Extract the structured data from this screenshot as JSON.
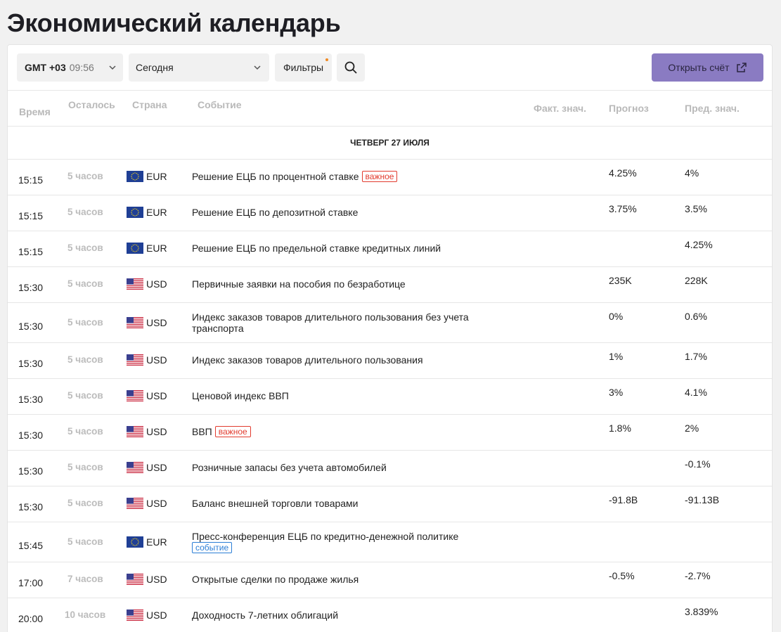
{
  "page": {
    "title": "Экономический календарь"
  },
  "toolbar": {
    "timezone_label": "GMT +03",
    "timezone_time": "09:56",
    "date_value": "Сегодня",
    "filters_label": "Фильтры",
    "open_account_label": "Открыть счёт"
  },
  "columns": {
    "time": "Время",
    "left": "Осталось",
    "country": "Страна",
    "event": "Событие",
    "fact": "Факт. знач.",
    "forecast": "Прогноз",
    "prev": "Пред. знач."
  },
  "day_header": "ЧЕТВЕРГ 27 ИЮЛЯ",
  "badges": {
    "important": "важное",
    "event": "событие"
  },
  "rows": [
    {
      "time": "15:15",
      "left": "5 часов",
      "country": "EUR",
      "flag": "eu-flag-icon",
      "event": "Решение ЕЦБ по процентной ставке",
      "badge": "important",
      "forecast": "4.25%",
      "prev": "4%"
    },
    {
      "time": "15:15",
      "left": "5 часов",
      "country": "EUR",
      "flag": "eu-flag-icon",
      "event": "Решение ЕЦБ по депозитной ставке",
      "badge": "",
      "forecast": "3.75%",
      "prev": "3.5%"
    },
    {
      "time": "15:15",
      "left": "5 часов",
      "country": "EUR",
      "flag": "eu-flag-icon",
      "event": "Решение ЕЦБ по предельной ставке кредитных линий",
      "badge": "",
      "forecast": "",
      "prev": "4.25%"
    },
    {
      "time": "15:30",
      "left": "5 часов",
      "country": "USD",
      "flag": "us-flag-icon",
      "event": "Первичные заявки на пособия по безработице",
      "badge": "",
      "forecast": "235K",
      "prev": "228K"
    },
    {
      "time": "15:30",
      "left": "5 часов",
      "country": "USD",
      "flag": "us-flag-icon",
      "event": "Индекс заказов товаров длительного пользования без учета транспорта",
      "badge": "",
      "forecast": "0%",
      "prev": "0.6%"
    },
    {
      "time": "15:30",
      "left": "5 часов",
      "country": "USD",
      "flag": "us-flag-icon",
      "event": "Индекс заказов товаров длительного пользования",
      "badge": "",
      "forecast": "1%",
      "prev": "1.7%"
    },
    {
      "time": "15:30",
      "left": "5 часов",
      "country": "USD",
      "flag": "us-flag-icon",
      "event": "Ценовой индекс ВВП",
      "badge": "",
      "forecast": "3%",
      "prev": "4.1%"
    },
    {
      "time": "15:30",
      "left": "5 часов",
      "country": "USD",
      "flag": "us-flag-icon",
      "event": "ВВП",
      "badge": "important",
      "forecast": "1.8%",
      "prev": "2%"
    },
    {
      "time": "15:30",
      "left": "5 часов",
      "country": "USD",
      "flag": "us-flag-icon",
      "event": "Розничные запасы без учета автомобилей",
      "badge": "",
      "forecast": "",
      "prev": "-0.1%"
    },
    {
      "time": "15:30",
      "left": "5 часов",
      "country": "USD",
      "flag": "us-flag-icon",
      "event": "Баланс внешней торговли товарами",
      "badge": "",
      "forecast": "-91.8B",
      "prev": "-91.13B"
    },
    {
      "time": "15:45",
      "left": "5 часов",
      "country": "EUR",
      "flag": "eu-flag-icon",
      "event": "Пресс-конференция ЕЦБ по кредитно-денежной политике",
      "badge": "event",
      "forecast": "",
      "prev": ""
    },
    {
      "time": "17:00",
      "left": "7 часов",
      "country": "USD",
      "flag": "us-flag-icon",
      "event": "Открытые сделки по продаже жилья",
      "badge": "",
      "forecast": "-0.5%",
      "prev": "-2.7%"
    },
    {
      "time": "20:00",
      "left": "10 часов",
      "country": "USD",
      "flag": "us-flag-icon",
      "event": "Доходность 7-летних облигаций",
      "badge": "",
      "forecast": "",
      "prev": "3.839%"
    }
  ]
}
